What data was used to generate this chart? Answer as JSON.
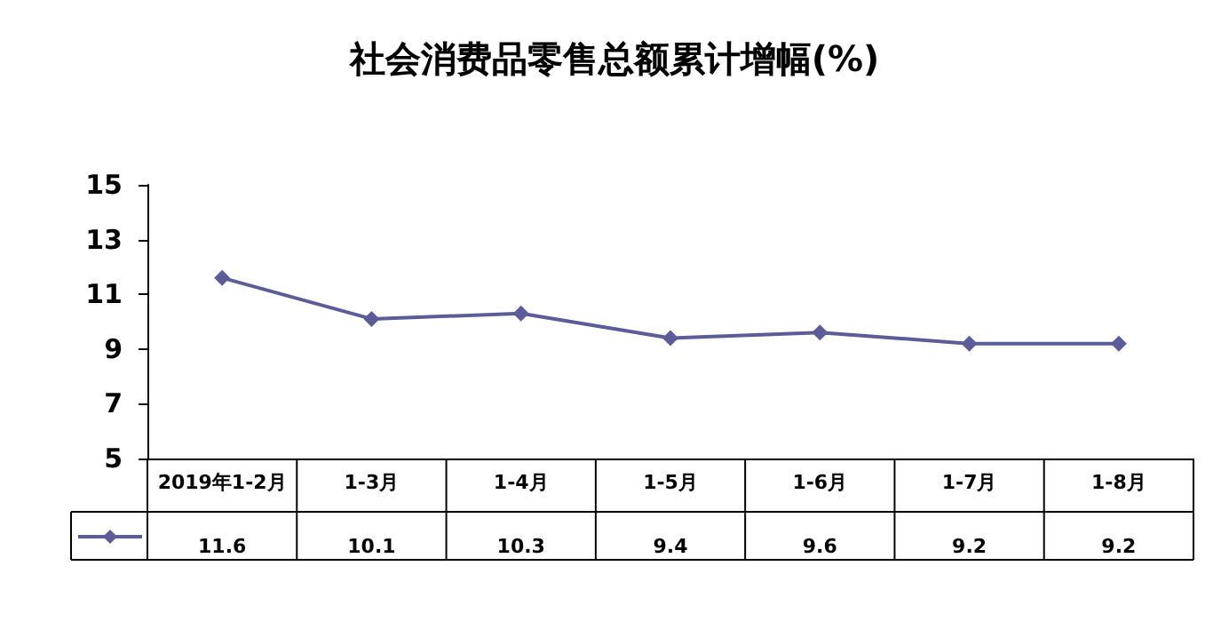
{
  "chart_data": {
    "type": "line",
    "title": "社会消费品零售总额累计增幅(%)",
    "categories": [
      "2019年1-2月",
      "1-3月",
      "1-4月",
      "1-5月",
      "1-6月",
      "1-7月",
      "1-8月"
    ],
    "values": [
      11.6,
      10.1,
      10.3,
      9.4,
      9.6,
      9.2,
      9.2
    ],
    "color": "#5c5c99",
    "ylim": [
      5,
      15
    ],
    "yticks": [
      5,
      7,
      9,
      11,
      13,
      15
    ],
    "grid": false,
    "marker": "diamond",
    "line_style": "solid",
    "data_labels": true
  }
}
